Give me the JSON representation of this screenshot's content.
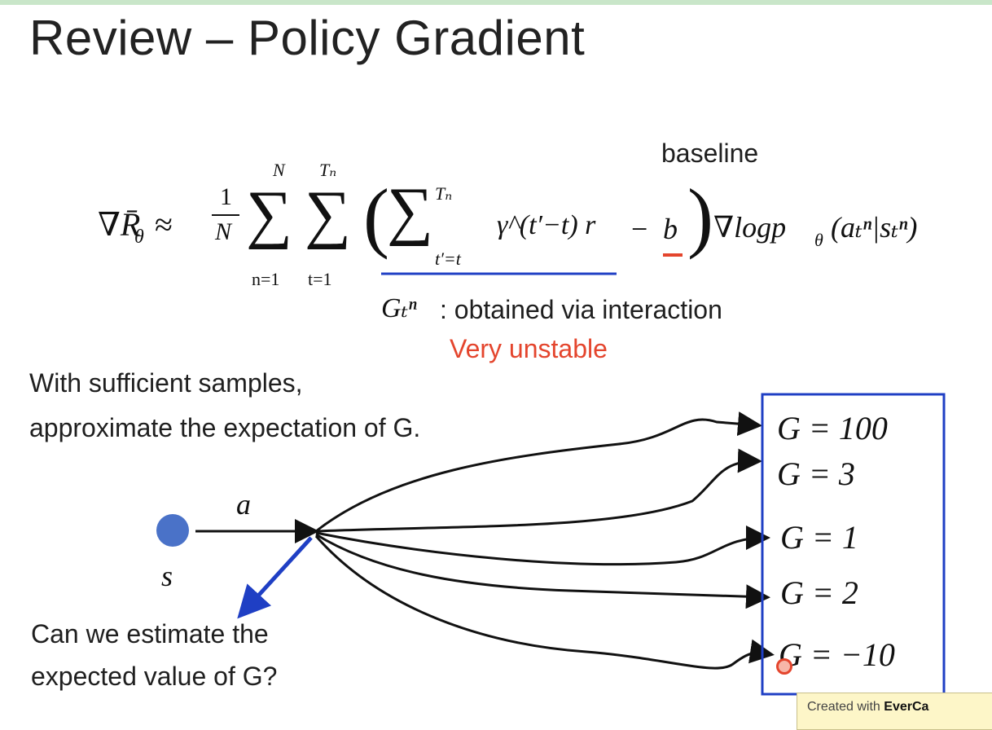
{
  "slide": {
    "title": "Review – Policy Gradient",
    "formula": {
      "grad_r": "∇R̄",
      "theta": "θ",
      "approx": "≈",
      "frac_num": "1",
      "frac_den": "N",
      "sum1_top": "N",
      "sum1_bottom": "n=1",
      "sum2_top": "Tₙ",
      "sum2_bottom": "t=1",
      "inner_sum_top": "Tₙ",
      "inner_sum_bottom": "t′=t",
      "inner_term": "γ^(t′−t) r",
      "minus": "−",
      "baseline_symbol": "b",
      "grad_log": "∇logp",
      "grad_log_args": "(aₜⁿ|sₜⁿ)"
    },
    "baseline_label": "baseline",
    "gtn_symbol": "Gₜⁿ",
    "gtn_desc": ": obtained via interaction",
    "unstable_label": "Very unstable",
    "samples_line1": "With sufficient samples,",
    "samples_line2": "approximate the expectation of G.",
    "state_label": "s",
    "action_label": "a",
    "question_line1": "Can we estimate the",
    "question_line2": "expected value of G?",
    "outcomes": [
      "G = 100",
      "G = 3",
      "G = 1",
      "G = 2",
      "G = −10"
    ],
    "watermark_prefix": "Created with ",
    "watermark_brand": "EverCa"
  },
  "colors": {
    "accent_blue": "#1f3fc4",
    "state_dot": "#4a72c8",
    "highlight_red": "#e4452d"
  }
}
